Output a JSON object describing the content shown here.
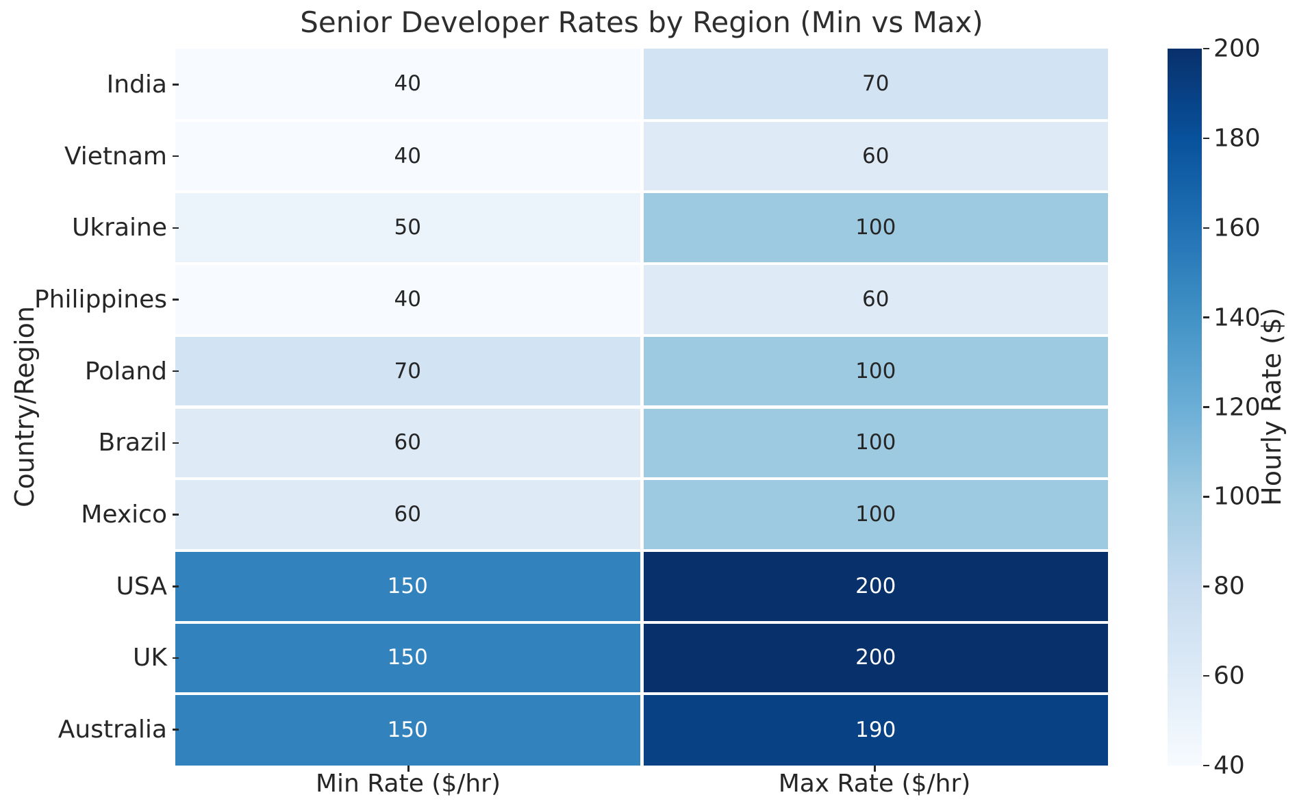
{
  "title": "Senior Developer Rates by Region (Min vs Max)",
  "axes": {
    "ylabel": "Country/Region",
    "x_tick_labels": [
      "Min Rate ($/hr)",
      "Max Rate ($/hr)"
    ]
  },
  "colorbar": {
    "label": "Hourly Rate ($)",
    "ticks": [
      200,
      180,
      160,
      140,
      120,
      100,
      80,
      60,
      40
    ],
    "vmin": 40,
    "vmax": 200,
    "colormap": "Blues"
  },
  "chart_data": {
    "type": "heatmap",
    "title": "Senior Developer Rates by Region (Min vs Max)",
    "xlabel": "",
    "ylabel": "Country/Region",
    "columns": [
      "Min Rate ($/hr)",
      "Max Rate ($/hr)"
    ],
    "categories": [
      "India",
      "Vietnam",
      "Ukraine",
      "Philippines",
      "Poland",
      "Brazil",
      "Mexico",
      "USA",
      "UK",
      "Australia"
    ],
    "values": [
      [
        40,
        70
      ],
      [
        40,
        60
      ],
      [
        50,
        100
      ],
      [
        40,
        60
      ],
      [
        70,
        100
      ],
      [
        60,
        100
      ],
      [
        60,
        100
      ],
      [
        150,
        200
      ],
      [
        150,
        200
      ],
      [
        150,
        190
      ]
    ],
    "annotated": true,
    "colorbar_label": "Hourly Rate ($)",
    "color_range": [
      40,
      200
    ],
    "legend_position": "right-colorbar",
    "grid": false
  },
  "colors": {
    "background": "#ffffff",
    "text": "#262626",
    "cell_gap": "#ffffff",
    "annot_light": "#ffffff",
    "annot_dark": "#262626",
    "blues_anchors": [
      "#f7fbff",
      "#deebf7",
      "#c6dbef",
      "#9ecae1",
      "#6baed6",
      "#4292c6",
      "#2171b5",
      "#08519c",
      "#08306b"
    ]
  }
}
